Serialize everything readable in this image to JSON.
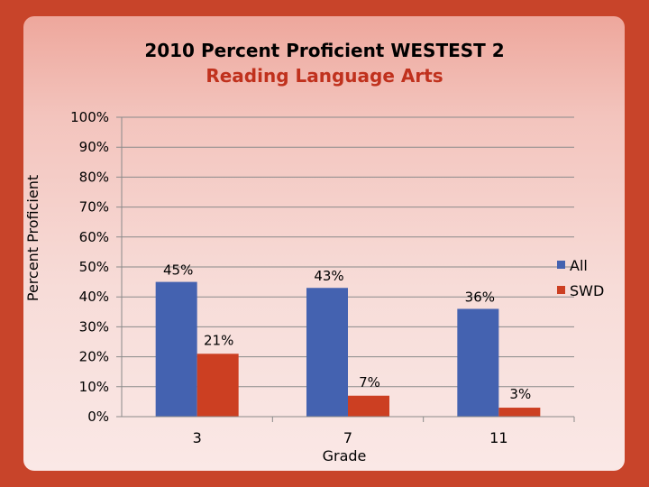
{
  "title": "2010 Percent Proficient WESTEST 2",
  "subtitle": "Reading Language Arts",
  "chart_data": {
    "type": "bar",
    "title": "2010 Percent Proficient WESTEST 2",
    "subtitle": "Reading Language Arts",
    "xlabel": "Grade",
    "ylabel": "Percent Proficient",
    "categories": [
      "3",
      "7",
      "11"
    ],
    "series": [
      {
        "name": "All",
        "values": [
          45,
          43,
          36
        ],
        "labels": [
          "45%",
          "43%",
          "36%"
        ],
        "color": "#4462b0"
      },
      {
        "name": "SWD",
        "values": [
          21,
          7,
          3
        ],
        "labels": [
          "21%",
          "7%",
          "3%"
        ],
        "color": "#cc3f22"
      }
    ],
    "ylim": [
      0,
      100
    ],
    "yticks": [
      "0%",
      "10%",
      "20%",
      "30%",
      "40%",
      "50%",
      "60%",
      "70%",
      "80%",
      "90%",
      "100%"
    ],
    "grid": true,
    "legend": "right"
  }
}
